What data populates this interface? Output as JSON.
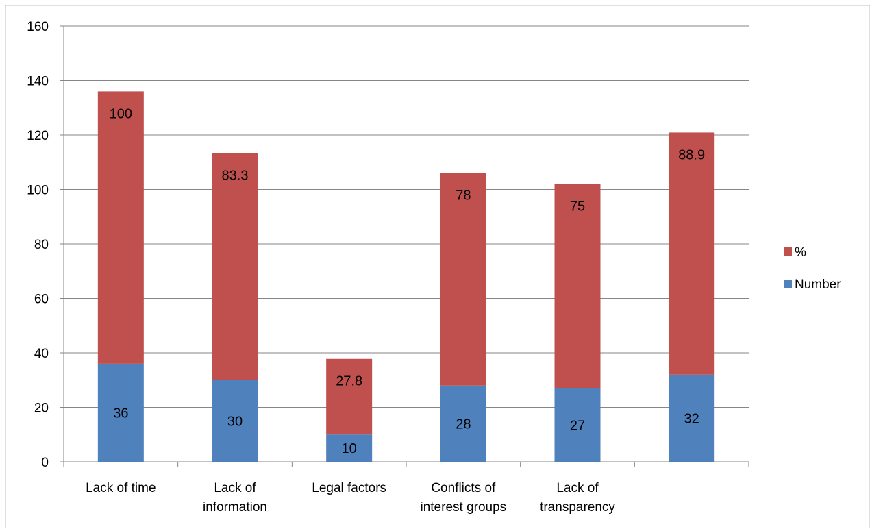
{
  "chart_data": {
    "type": "bar",
    "stacked": true,
    "categories": [
      [
        "Lack of time"
      ],
      [
        "Lack of",
        "information"
      ],
      [
        "Legal factors"
      ],
      [
        "Conflicts of",
        "interest groups"
      ],
      [
        "Lack of",
        "transparency"
      ],
      []
    ],
    "series": [
      {
        "name": "Number",
        "color": "#4f81bd",
        "values": [
          36,
          30,
          10,
          28,
          27,
          32
        ]
      },
      {
        "name": "%",
        "color": "#c0504d",
        "values": [
          100,
          83.3,
          27.8,
          78,
          75,
          88.9
        ]
      }
    ],
    "data_labels": {
      "Number": [
        "36",
        "30",
        "10",
        "28",
        "27",
        "32"
      ],
      "%": [
        "100",
        "83.3",
        "27.8",
        "78",
        "75",
        "88.9"
      ]
    },
    "ylim": [
      0,
      160
    ],
    "yticks": [
      0,
      20,
      40,
      60,
      80,
      100,
      120,
      140,
      160
    ],
    "ytick_labels": [
      "0",
      "20",
      "40",
      "60",
      "80",
      "100",
      "120",
      "140",
      "160"
    ],
    "grid": true,
    "legend": {
      "position": "right",
      "order": [
        "%",
        "Number"
      ]
    },
    "title": "",
    "xlabel": "",
    "ylabel": ""
  }
}
